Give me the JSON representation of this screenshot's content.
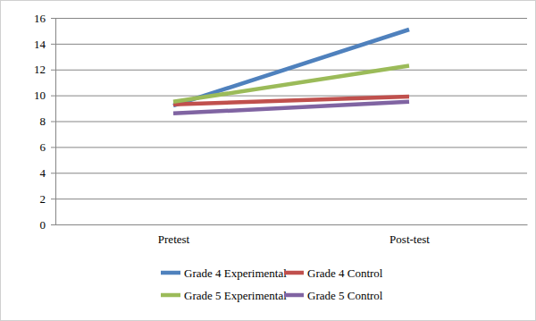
{
  "chart_data": {
    "type": "line",
    "categories": [
      "Pretest",
      "Post-test"
    ],
    "series": [
      {
        "name": "Grade 4 Experimental",
        "color": "#4f81bd",
        "values": [
          9.2,
          15.1
        ]
      },
      {
        "name": "Grade 4 Control",
        "color": "#c0504d",
        "values": [
          9.3,
          9.9
        ]
      },
      {
        "name": "Grade 5 Experimental",
        "color": "#9bbb59",
        "values": [
          9.5,
          12.3
        ]
      },
      {
        "name": "Grade 5 Control",
        "color": "#8064a2",
        "values": [
          8.6,
          9.5
        ]
      }
    ],
    "ylim": [
      0,
      16
    ],
    "yticks": [
      0,
      2,
      4,
      6,
      8,
      10,
      12,
      14,
      16
    ],
    "grid": true,
    "legend": "bottom"
  }
}
